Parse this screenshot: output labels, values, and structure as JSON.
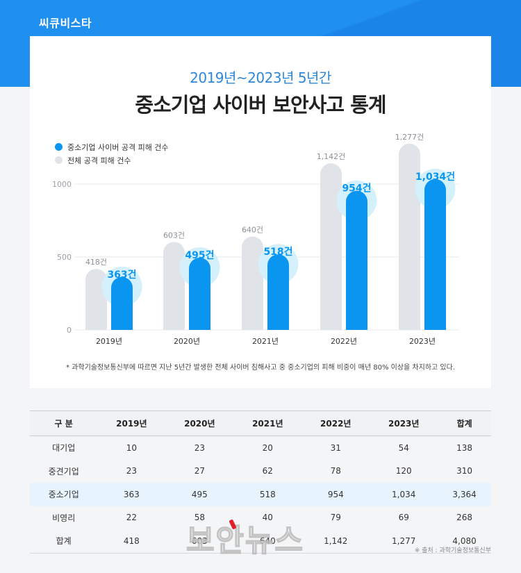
{
  "brand": "씨큐비스타",
  "subtitle": "2019년~2023년 5년간",
  "title": "중소기업 사이버 보안사고 통계",
  "colors": {
    "accent": "#0a96f0",
    "gray": "#e0e3e8",
    "halo": "#d4f1fb",
    "header_band": "#1f8ff0"
  },
  "legend": [
    {
      "label": "중소기업 사이버 공격 피해 건수",
      "color": "#0a96f0"
    },
    {
      "label": "전체 공격 피해 건수",
      "color": "#e0e3e8"
    }
  ],
  "chart_data": {
    "type": "bar",
    "categories": [
      "2019년",
      "2020년",
      "2021년",
      "2022년",
      "2023년"
    ],
    "series": [
      {
        "name": "전체 공격 피해 건수",
        "values": [
          418,
          603,
          640,
          1142,
          1277
        ],
        "labels": [
          "418건",
          "603건",
          "640건",
          "1,142건",
          "1,277건"
        ]
      },
      {
        "name": "중소기업 사이버 공격 피해 건수",
        "values": [
          363,
          495,
          518,
          954,
          1034
        ],
        "labels": [
          "363건",
          "495건",
          "518건",
          "954건",
          "1,034건"
        ]
      }
    ],
    "yticks": [
      "0",
      "500",
      "1000"
    ],
    "ylim": [
      0,
      1300
    ],
    "grid": true,
    "legend_position": "top-left"
  },
  "note": "* 과학기술정보통신부에 따르면 지난 5년간 발생한 전체 사이버 침해사고 중 중소기업의 피해 비중이 매년 80% 이상을 차지하고 있다.",
  "table": {
    "headers": [
      "구 분",
      "2019년",
      "2020년",
      "2021년",
      "2022년",
      "2023년",
      "합계"
    ],
    "rows": [
      [
        "대기업",
        "10",
        "23",
        "20",
        "31",
        "54",
        "138"
      ],
      [
        "중견기업",
        "23",
        "27",
        "62",
        "78",
        "120",
        "310"
      ],
      [
        "중소기업",
        "363",
        "495",
        "518",
        "954",
        "1,034",
        "3,364"
      ],
      [
        "비영리",
        "22",
        "58",
        "40",
        "79",
        "69",
        "268"
      ],
      [
        "합계",
        "418",
        "603",
        "640",
        "1,142",
        "1,277",
        "4,080"
      ]
    ],
    "highlight_row": 2
  },
  "source": "※ 출처 : 과학기술정보통신부",
  "watermark": "보안뉴스"
}
